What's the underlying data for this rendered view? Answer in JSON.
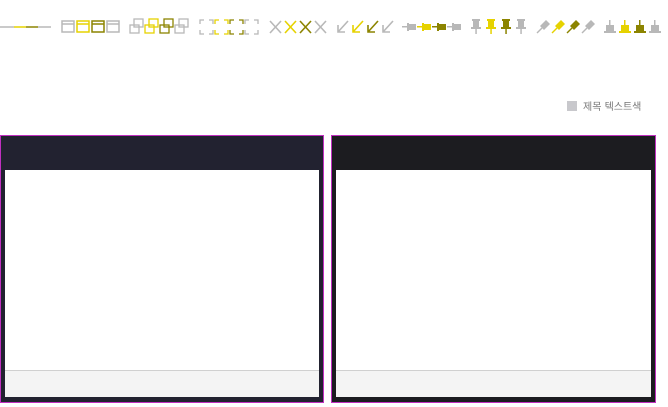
{
  "legend": {
    "label": "제목 텍스트색",
    "swatch_color": "#c8c8cc"
  },
  "colors": {
    "grey": "#b8b8b8",
    "yellow": "#e6d200",
    "olive": "#8c8400",
    "frame": "#c030c0"
  },
  "icons": [
    "line-icon",
    "window-restore-icon",
    "window-cascade-icon",
    "expand-icon",
    "close-x-icon",
    "arrow-down-left-icon",
    "pin-horizontal-icon",
    "pin-vertical-icon",
    "pin-diagonal-icon",
    "pin-flat-icon"
  ],
  "panels": [
    {
      "name": "left-panel"
    },
    {
      "name": "right-panel"
    }
  ]
}
